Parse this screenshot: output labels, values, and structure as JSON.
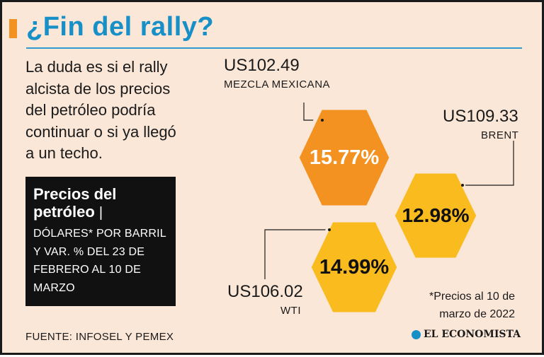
{
  "header": {
    "title": "¿Fin del rally?"
  },
  "intro": {
    "lines": [
      "La duda es si el rally",
      "alcista de los precios",
      "del petróleo podría",
      "continuar  o si ya llegó",
      "a un techo."
    ]
  },
  "info_box": {
    "title_line1": "Precios del",
    "title_line2": "petróleo",
    "separator": "|",
    "desc_lines": [
      "DÓLARES* POR BARRIL",
      "Y VAR. % DEL 23 DE",
      "FEBRERO AL 10 DE",
      "MARZO"
    ]
  },
  "footer": {
    "source": "FUENTE: INFOSEL Y PEMEX",
    "logo_text": "EL ECONOMISTA",
    "logo_icon": "globe-icon"
  },
  "note": {
    "lines": [
      "*Precios al 10 de",
      "marzo de 2022"
    ]
  },
  "colors": {
    "title": "#1790c8",
    "hex_orange": "#f39221",
    "hex_yellow": "#f9bb1d",
    "background": "#fbe7d8",
    "info_box": "#111111"
  },
  "chart_data": {
    "type": "bar",
    "categories": [
      "MEZCLA  MEXICANA",
      "BRENT",
      "WTI"
    ],
    "series": [
      {
        "values": [
          15.77,
          12.98,
          14.99
        ]
      }
    ],
    "prices": [
      102.49,
      109.33,
      106.02
    ],
    "price_labels": [
      "US102.49",
      "US109.33",
      "US106.02"
    ],
    "value_labels": [
      "15.77%",
      "12.98%",
      "14.99%"
    ]
  }
}
